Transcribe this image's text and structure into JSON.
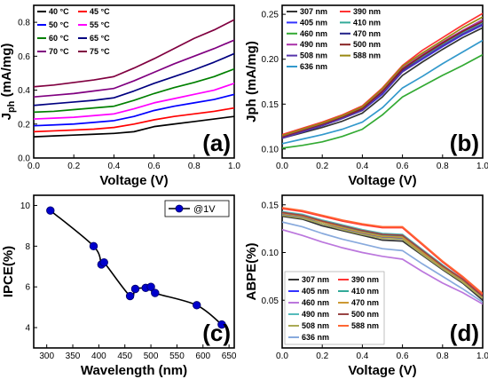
{
  "chart_data": [
    {
      "id": "a",
      "type": "line",
      "panel_label": "(a)",
      "xlabel": "Voltage (V)",
      "ylabel": "Jph (mA/mg)",
      "ylabel_main": "J",
      "ylabel_sub": "ph",
      "ylabel_rest": " (mA/mg)",
      "xlim": [
        0.0,
        1.0
      ],
      "ylim": [
        0.0,
        0.9
      ],
      "xticks": [
        "0.0",
        "0.2",
        "0.4",
        "0.6",
        "0.8",
        "1.0"
      ],
      "yticks": [
        "0.0",
        "0.2",
        "0.4",
        "0.6",
        "0.8"
      ],
      "legend": "top-left",
      "x": [
        0.0,
        0.1,
        0.2,
        0.3,
        0.4,
        0.5,
        0.6,
        0.7,
        0.8,
        0.9,
        1.0
      ],
      "series": [
        {
          "name": "40 °C",
          "color": "#000000",
          "values": [
            0.125,
            0.13,
            0.135,
            0.14,
            0.145,
            0.155,
            0.185,
            0.2,
            0.215,
            0.23,
            0.245
          ]
        },
        {
          "name": "45 °C",
          "color": "#ff0000",
          "values": [
            0.155,
            0.16,
            0.165,
            0.17,
            0.18,
            0.2,
            0.225,
            0.245,
            0.26,
            0.275,
            0.295
          ]
        },
        {
          "name": "50 °C",
          "color": "#0000ff",
          "values": [
            0.19,
            0.195,
            0.2,
            0.21,
            0.22,
            0.245,
            0.28,
            0.305,
            0.325,
            0.345,
            0.375
          ]
        },
        {
          "name": "55 °C",
          "color": "#ff00ff",
          "values": [
            0.23,
            0.235,
            0.24,
            0.25,
            0.26,
            0.29,
            0.325,
            0.35,
            0.375,
            0.4,
            0.44
          ]
        },
        {
          "name": "60 °C",
          "color": "#008000",
          "values": [
            0.27,
            0.275,
            0.285,
            0.295,
            0.305,
            0.34,
            0.38,
            0.415,
            0.445,
            0.48,
            0.525
          ]
        },
        {
          "name": "65 °C",
          "color": "#000080",
          "values": [
            0.31,
            0.32,
            0.33,
            0.34,
            0.355,
            0.395,
            0.44,
            0.48,
            0.52,
            0.565,
            0.615
          ]
        },
        {
          "name": "70 °C",
          "color": "#800080",
          "values": [
            0.36,
            0.37,
            0.38,
            0.395,
            0.41,
            0.455,
            0.505,
            0.555,
            0.6,
            0.645,
            0.695
          ]
        },
        {
          "name": "75 °C",
          "color": "#800040",
          "values": [
            0.42,
            0.43,
            0.445,
            0.46,
            0.48,
            0.53,
            0.585,
            0.645,
            0.705,
            0.755,
            0.815
          ]
        }
      ]
    },
    {
      "id": "b",
      "type": "line",
      "panel_label": "(b)",
      "xlabel": "Voltage (V)",
      "ylabel": "Jph (mA/mg)",
      "ylabel_main": "Jph",
      "ylabel_sub": "",
      "ylabel_rest": " (mA/mg)",
      "xlim": [
        0.0,
        1.0
      ],
      "ylim": [
        0.09,
        0.26
      ],
      "xticks": [
        "0.0",
        "0.2",
        "0.4",
        "0.6",
        "0.8",
        "1.0"
      ],
      "yticks": [
        "0.10",
        "0.15",
        "0.20",
        "0.25"
      ],
      "legend": "top-left",
      "x": [
        0.0,
        0.1,
        0.2,
        0.3,
        0.4,
        0.5,
        0.6,
        0.7,
        0.8,
        0.9,
        1.0
      ],
      "series": [
        {
          "name": "307 nm",
          "color": "#333333",
          "values": [
            0.112,
            0.118,
            0.124,
            0.131,
            0.14,
            0.158,
            0.182,
            0.197,
            0.211,
            0.224,
            0.235
          ]
        },
        {
          "name": "390 nm",
          "color": "#ff3333",
          "values": [
            0.116,
            0.123,
            0.13,
            0.138,
            0.148,
            0.168,
            0.193,
            0.21,
            0.224,
            0.238,
            0.251
          ]
        },
        {
          "name": "405 nm",
          "color": "#3333ff",
          "values": [
            0.113,
            0.119,
            0.126,
            0.134,
            0.143,
            0.161,
            0.186,
            0.2,
            0.214,
            0.227,
            0.238
          ]
        },
        {
          "name": "410 nm",
          "color": "#33aa99",
          "values": [
            0.114,
            0.121,
            0.128,
            0.136,
            0.145,
            0.164,
            0.188,
            0.203,
            0.217,
            0.23,
            0.241
          ]
        },
        {
          "name": "460 nm",
          "color": "#33aa33",
          "values": [
            0.101,
            0.104,
            0.108,
            0.114,
            0.122,
            0.138,
            0.158,
            0.17,
            0.182,
            0.193,
            0.205
          ]
        },
        {
          "name": "470 nm",
          "color": "#222288",
          "values": [
            0.113,
            0.12,
            0.127,
            0.135,
            0.144,
            0.162,
            0.187,
            0.201,
            0.215,
            0.228,
            0.239
          ]
        },
        {
          "name": "490 nm",
          "color": "#aa33aa",
          "values": [
            0.114,
            0.121,
            0.128,
            0.136,
            0.146,
            0.165,
            0.19,
            0.205,
            0.219,
            0.232,
            0.244
          ]
        },
        {
          "name": "500 nm",
          "color": "#882222",
          "values": [
            0.113,
            0.12,
            0.127,
            0.135,
            0.145,
            0.164,
            0.189,
            0.204,
            0.218,
            0.231,
            0.242
          ]
        },
        {
          "name": "508 nm",
          "color": "#5533aa",
          "values": [
            0.112,
            0.119,
            0.126,
            0.134,
            0.143,
            0.162,
            0.186,
            0.201,
            0.215,
            0.228,
            0.239
          ]
        },
        {
          "name": "588 nm",
          "color": "#998811",
          "values": [
            0.115,
            0.122,
            0.129,
            0.137,
            0.147,
            0.167,
            0.192,
            0.207,
            0.221,
            0.235,
            0.247
          ]
        },
        {
          "name": "636 nm",
          "color": "#3399cc",
          "values": [
            0.106,
            0.111,
            0.116,
            0.122,
            0.13,
            0.146,
            0.168,
            0.181,
            0.195,
            0.208,
            0.221
          ]
        }
      ]
    },
    {
      "id": "c",
      "type": "scatter",
      "panel_label": "(c)",
      "xlabel": "Wavelength  (nm)",
      "ylabel": "IPCE(%)",
      "xlim": [
        275,
        660
      ],
      "ylim": [
        3.0,
        10.5
      ],
      "xticks": [
        "300",
        "350",
        "400",
        "450",
        "500",
        "550",
        "600",
        "650"
      ],
      "yticks": [
        "4",
        "6",
        "8",
        "10"
      ],
      "legend": "top-right",
      "series": [
        {
          "name": "@1V",
          "color": "#0000cc",
          "x": [
            307,
            390,
            405,
            410,
            460,
            470,
            490,
            500,
            508,
            588,
            636
          ],
          "values": [
            9.75,
            8.0,
            7.1,
            7.2,
            5.55,
            5.9,
            5.95,
            6.0,
            5.7,
            5.1,
            4.15
          ]
        }
      ]
    },
    {
      "id": "d",
      "type": "line",
      "panel_label": "(d)",
      "xlabel": "Voltage (V)",
      "ylabel": "ABPE(%)",
      "xlim": [
        0.0,
        1.0
      ],
      "ylim": [
        0.0,
        0.16
      ],
      "xticks": [
        "0.0",
        "0.2",
        "0.4",
        "0.6",
        "0.8",
        "1.0"
      ],
      "yticks": [
        "0.05",
        "0.10",
        "0.15"
      ],
      "legend": "bottom-left",
      "x": [
        0.0,
        0.1,
        0.2,
        0.3,
        0.4,
        0.5,
        0.6,
        0.7,
        0.8,
        0.9,
        1.0
      ],
      "series": [
        {
          "name": "307 nm",
          "color": "#333333",
          "values": [
            0.138,
            0.135,
            0.128,
            0.123,
            0.118,
            0.113,
            0.112,
            0.097,
            0.082,
            0.068,
            0.05
          ]
        },
        {
          "name": "390 nm",
          "color": "#ff3333",
          "values": [
            0.146,
            0.143,
            0.138,
            0.133,
            0.129,
            0.126,
            0.126,
            0.108,
            0.09,
            0.074,
            0.056
          ]
        },
        {
          "name": "405 nm",
          "color": "#3333ff",
          "values": [
            0.14,
            0.137,
            0.13,
            0.125,
            0.12,
            0.116,
            0.115,
            0.099,
            0.084,
            0.07,
            0.052
          ]
        },
        {
          "name": "410 nm",
          "color": "#33aa99",
          "values": [
            0.141,
            0.138,
            0.132,
            0.127,
            0.122,
            0.118,
            0.117,
            0.101,
            0.085,
            0.071,
            0.053
          ]
        },
        {
          "name": "460 nm",
          "color": "#bb77dd",
          "values": [
            0.124,
            0.118,
            0.111,
            0.105,
            0.1,
            0.096,
            0.093,
            0.08,
            0.068,
            0.058,
            0.046
          ]
        },
        {
          "name": "470 nm",
          "color": "#cc9933",
          "values": [
            0.141,
            0.138,
            0.132,
            0.126,
            0.121,
            0.117,
            0.116,
            0.1,
            0.085,
            0.071,
            0.053
          ]
        },
        {
          "name": "490 nm",
          "color": "#55bbbb",
          "values": [
            0.143,
            0.14,
            0.134,
            0.129,
            0.124,
            0.12,
            0.119,
            0.103,
            0.087,
            0.072,
            0.054
          ]
        },
        {
          "name": "500 nm",
          "color": "#994444",
          "values": [
            0.142,
            0.139,
            0.133,
            0.128,
            0.123,
            0.119,
            0.118,
            0.102,
            0.086,
            0.072,
            0.054
          ]
        },
        {
          "name": "508 nm",
          "color": "#aaaa55",
          "values": [
            0.139,
            0.136,
            0.13,
            0.124,
            0.119,
            0.115,
            0.114,
            0.098,
            0.083,
            0.069,
            0.052
          ]
        },
        {
          "name": "588 nm",
          "color": "#ff6633",
          "values": [
            0.147,
            0.144,
            0.139,
            0.134,
            0.13,
            0.127,
            0.127,
            0.109,
            0.091,
            0.075,
            0.057
          ]
        },
        {
          "name": "636 nm",
          "color": "#88aadd",
          "values": [
            0.132,
            0.127,
            0.12,
            0.114,
            0.109,
            0.104,
            0.102,
            0.088,
            0.075,
            0.062,
            0.048
          ]
        }
      ]
    }
  ]
}
